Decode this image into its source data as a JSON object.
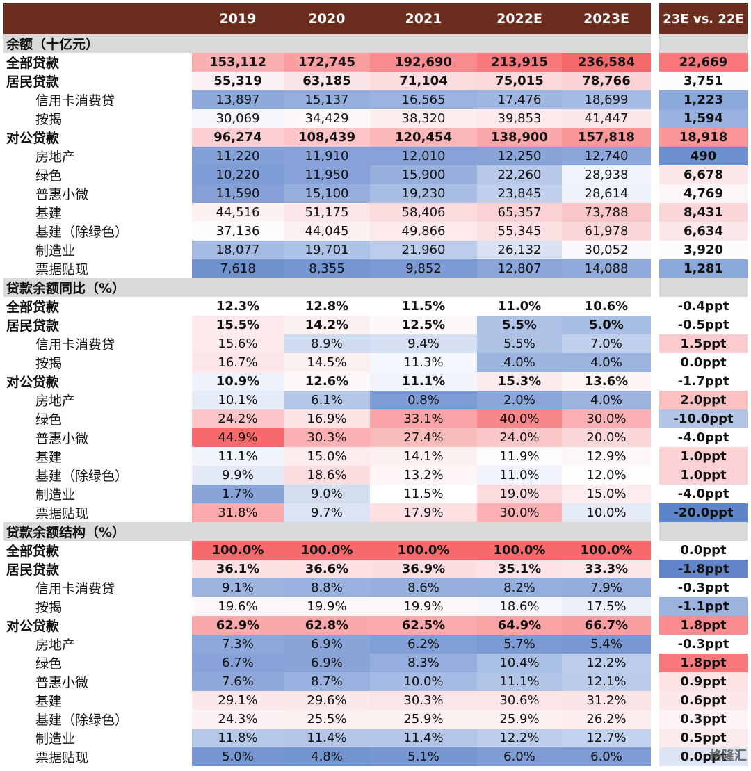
{
  "header": {
    "blank": "",
    "years": [
      "2019",
      "2020",
      "2021",
      "2022E",
      "2023E"
    ],
    "delta": "23E vs. 22E"
  },
  "sections": [
    {
      "title": "余额（十亿元）",
      "rows": [
        {
          "label": "全部贷款",
          "sub": false,
          "bold": true,
          "vals": [
            "153,112",
            "172,745",
            "192,690",
            "213,915",
            "236,584"
          ],
          "colors": [
            "#f9aeb0",
            "#f99da0",
            "#f98b8e",
            "#f8787b",
            "#f8696b"
          ],
          "delta": "22,669",
          "dcolor": "#f8787b"
        },
        {
          "label": "居民贷款",
          "sub": false,
          "bold": true,
          "vals": [
            "55,319",
            "63,185",
            "71,104",
            "75,015",
            "78,766"
          ],
          "colors": [
            "#fdf2f3",
            "#fbe4e5",
            "#fbdcde",
            "#fbd8d9",
            "#fbd2d4"
          ],
          "delta": "3,751",
          "dcolor": "#fbfbfe"
        },
        {
          "label": "信用卡消费贷",
          "sub": true,
          "bold": false,
          "vals": [
            "13,897",
            "15,137",
            "16,565",
            "17,476",
            "18,699"
          ],
          "colors": [
            "#8eaadb",
            "#94aedd",
            "#9ab3e0",
            "#9fb7e1",
            "#a6bce4"
          ],
          "delta": "1,223",
          "dcolor": "#8ba8da"
        },
        {
          "label": "按揭",
          "sub": true,
          "bold": false,
          "vals": [
            "30,069",
            "34,429",
            "38,320",
            "39,853",
            "41,447"
          ],
          "colors": [
            "#f4f6fc",
            "#fdf9fa",
            "#fcedee",
            "#fceaeb",
            "#fbe7e8"
          ],
          "delta": "1,594",
          "dcolor": "#98b1df"
        },
        {
          "label": "对公贷款",
          "sub": false,
          "bold": true,
          "vals": [
            "96,274",
            "108,439",
            "120,454",
            "138,900",
            "157,818"
          ],
          "colors": [
            "#fbcfd1",
            "#fbc4c6",
            "#fab8ba",
            "#faa8aa",
            "#f99799"
          ],
          "delta": "18,918",
          "dcolor": "#f99497"
        },
        {
          "label": "房地产",
          "sub": true,
          "bold": false,
          "vals": [
            "11,220",
            "11,910",
            "12,010",
            "12,250",
            "12,740"
          ],
          "colors": [
            "#829fd6",
            "#86a2d8",
            "#86a2d8",
            "#88a4d9",
            "#8ba6da"
          ],
          "delta": "490",
          "dcolor": "#6d90ce"
        },
        {
          "label": "绿色",
          "sub": true,
          "bold": false,
          "vals": [
            "10,220",
            "11,950",
            "15,900",
            "22,260",
            "28,938"
          ],
          "colors": [
            "#7d9bd4",
            "#86a2d8",
            "#98b0de",
            "#b7c8e9",
            "#f0f3fb"
          ],
          "delta": "6,678",
          "dcolor": "#fce8e9"
        },
        {
          "label": "普惠小微",
          "sub": true,
          "bold": false,
          "vals": [
            "11,590",
            "15,100",
            "19,230",
            "23,845",
            "28,614"
          ],
          "colors": [
            "#85a1d7",
            "#95aede",
            "#a8bee5",
            "#bfcfec",
            "#eef2fa"
          ],
          "delta": "4,769",
          "dcolor": "#fdf6f7"
        },
        {
          "label": "基建",
          "sub": true,
          "bold": false,
          "vals": [
            "44,516",
            "51,175",
            "58,406",
            "65,357",
            "73,788"
          ],
          "colors": [
            "#fdf1f2",
            "#fce6e7",
            "#fbdbdd",
            "#fbd1d3",
            "#fac5c7"
          ],
          "delta": "8,431",
          "dcolor": "#fbd6d8"
        },
        {
          "label": "基建（除绿色）",
          "sub": true,
          "bold": false,
          "vals": [
            "37,136",
            "44,045",
            "49,866",
            "55,345",
            "61,978"
          ],
          "colors": [
            "#fdfbfc",
            "#fdf1f2",
            "#fce9ea",
            "#fbe0e2",
            "#fbd6d8"
          ],
          "delta": "6,634",
          "dcolor": "#fce8e9"
        },
        {
          "label": "制造业",
          "sub": true,
          "bold": false,
          "vals": [
            "18,077",
            "19,701",
            "21,960",
            "26,132",
            "30,052"
          ],
          "colors": [
            "#a4bae3",
            "#acc1e6",
            "#bccdeb",
            "#d9e2f3",
            "#f7f9fd"
          ],
          "delta": "3,920",
          "dcolor": "#fdfbfc"
        },
        {
          "label": "票据贴现",
          "sub": true,
          "bold": false,
          "vals": [
            "7,618",
            "8,355",
            "9,852",
            "12,807",
            "14,088"
          ],
          "colors": [
            "#6f91ce",
            "#7596d1",
            "#7c9ad4",
            "#8aa5d9",
            "#90aadc"
          ],
          "delta": "1,281",
          "dcolor": "#8ba8da"
        }
      ]
    },
    {
      "title": "贷款余额同比（%）",
      "rows": [
        {
          "label": "全部贷款",
          "sub": false,
          "bold": true,
          "vals": [
            "12.3%",
            "12.8%",
            "11.5%",
            "11.0%",
            "10.6%"
          ],
          "colors": [
            "#ffffff",
            "#ffffff",
            "#ffffff",
            "#ffffff",
            "#ffffff"
          ],
          "delta": "-0.4ppt",
          "dcolor": "#ffffff"
        },
        {
          "label": "居民贷款",
          "sub": false,
          "bold": true,
          "vals": [
            "15.5%",
            "14.2%",
            "12.5%",
            "5.5%",
            "5.0%"
          ],
          "colors": [
            "#fceaeb",
            "#fcf0f1",
            "#fdf8f9",
            "#aec2e6",
            "#a9bee5"
          ],
          "delta": "-0.5ppt",
          "dcolor": "#ffffff"
        },
        {
          "label": "信用卡消费贷",
          "sub": true,
          "bold": false,
          "vals": [
            "15.6%",
            "8.9%",
            "9.4%",
            "5.5%",
            "7.0%"
          ],
          "colors": [
            "#fceaeb",
            "#d0dcf0",
            "#d6e0f2",
            "#aec2e6",
            "#bfcfec"
          ],
          "delta": "1.5ppt",
          "dcolor": "#fbcbcd"
        },
        {
          "label": "按揭",
          "sub": true,
          "bold": false,
          "vals": [
            "16.7%",
            "14.5%",
            "11.3%",
            "4.0%",
            "4.0%"
          ],
          "colors": [
            "#fce5e6",
            "#fcefef",
            "#f3f6fc",
            "#9cb3e0",
            "#9cb3e0"
          ],
          "delta": "0.0ppt",
          "dcolor": "#ffffff"
        },
        {
          "label": "对公贷款",
          "sub": false,
          "bold": true,
          "vals": [
            "10.9%",
            "12.6%",
            "11.1%",
            "15.3%",
            "13.6%"
          ],
          "colors": [
            "#eef2fa",
            "#fdf8f9",
            "#f1f4fb",
            "#fcebec",
            "#fcf3f3"
          ],
          "delta": "-1.7ppt",
          "dcolor": "#ffffff"
        },
        {
          "label": "房地产",
          "sub": true,
          "bold": false,
          "vals": [
            "10.1%",
            "6.1%",
            "0.8%",
            "2.0%",
            "4.0%"
          ],
          "colors": [
            "#e6ecf7",
            "#b5c7e8",
            "#7d9bd4",
            "#8aa5d9",
            "#9cb3e0"
          ],
          "delta": "2.0ppt",
          "dcolor": "#fac0c2"
        },
        {
          "label": "绿色",
          "sub": true,
          "bold": false,
          "vals": [
            "24.2%",
            "16.9%",
            "33.1%",
            "40.0%",
            "30.0%"
          ],
          "colors": [
            "#fbc5c7",
            "#fce4e5",
            "#f9a3a6",
            "#f8878a",
            "#fab0b2"
          ],
          "delta": "-10.0ppt",
          "dcolor": "#b1c4e7"
        },
        {
          "label": "普惠小微",
          "sub": true,
          "bold": false,
          "vals": [
            "44.9%",
            "30.3%",
            "27.4%",
            "24.0%",
            "20.0%"
          ],
          "colors": [
            "#f8696b",
            "#fab0b2",
            "#fabbbd",
            "#fbc6c8",
            "#fbd7d9"
          ],
          "delta": "-4.0ppt",
          "dcolor": "#ffffff"
        },
        {
          "label": "基建",
          "sub": true,
          "bold": false,
          "vals": [
            "11.1%",
            "15.0%",
            "14.1%",
            "11.9%",
            "12.9%"
          ],
          "colors": [
            "#f1f4fb",
            "#fcecee",
            "#fcf0f1",
            "#fdfcfd",
            "#fdf7f7"
          ],
          "delta": "1.0ppt",
          "dcolor": "#fbd1d3"
        },
        {
          "label": "基建（除绿色）",
          "sub": true,
          "bold": false,
          "vals": [
            "9.9%",
            "18.6%",
            "13.2%",
            "11.0%",
            "12.0%"
          ],
          "colors": [
            "#e3e9f6",
            "#fcdddf",
            "#fdf5f6",
            "#f0f3fb",
            "#fdfdfe"
          ],
          "delta": "1.0ppt",
          "dcolor": "#fbd1d3"
        },
        {
          "label": "制造业",
          "sub": true,
          "bold": false,
          "vals": [
            "1.7%",
            "9.0%",
            "11.5%",
            "19.0%",
            "15.0%"
          ],
          "colors": [
            "#87a3d8",
            "#d2ddf0",
            "#ffffff",
            "#fbdbdd",
            "#fcecee"
          ],
          "delta": "-4.0ppt",
          "dcolor": "#ffffff"
        },
        {
          "label": "票据贴现",
          "sub": true,
          "bold": false,
          "vals": [
            "31.8%",
            "9.7%",
            "17.9%",
            "30.0%",
            "10.0%"
          ],
          "colors": [
            "#faaaac",
            "#dbe3f4",
            "#fce0e2",
            "#fab0b2",
            "#e4eaf6"
          ],
          "delta": "-20.0ppt",
          "dcolor": "#5e84c9"
        }
      ]
    },
    {
      "title": "贷款余额结构（%）",
      "rows": [
        {
          "label": "全部贷款",
          "sub": false,
          "bold": true,
          "vals": [
            "100.0%",
            "100.0%",
            "100.0%",
            "100.0%",
            "100.0%"
          ],
          "colors": [
            "#f8696b",
            "#f8696b",
            "#f8696b",
            "#f8696b",
            "#f8696b"
          ],
          "delta": "0.0ppt",
          "dcolor": "#ffffff"
        },
        {
          "label": "居民贷款",
          "sub": false,
          "bold": true,
          "vals": [
            "36.1%",
            "36.6%",
            "36.9%",
            "35.1%",
            "33.3%"
          ],
          "colors": [
            "#fbe0e2",
            "#fbdfe1",
            "#fbdedf",
            "#fbe2e4",
            "#fce7e8"
          ],
          "delta": "-1.8ppt",
          "dcolor": "#6184ca"
        },
        {
          "label": "信用卡消费贷",
          "sub": true,
          "bold": false,
          "vals": [
            "9.1%",
            "8.8%",
            "8.6%",
            "8.2%",
            "7.9%"
          ],
          "colors": [
            "#9db4e0",
            "#9ab2df",
            "#98b0de",
            "#94aedd",
            "#92acdc"
          ],
          "delta": "-0.3ppt",
          "dcolor": "#ffffff"
        },
        {
          "label": "按揭",
          "sub": true,
          "bold": false,
          "vals": [
            "19.6%",
            "19.9%",
            "19.9%",
            "18.6%",
            "17.5%"
          ],
          "colors": [
            "#fdf8f9",
            "#fdf7f8",
            "#fdf7f8",
            "#f5f7fc",
            "#eaeff9"
          ],
          "delta": "-1.1ppt",
          "dcolor": "#9cb3e0"
        },
        {
          "label": "对公贷款",
          "sub": false,
          "bold": true,
          "vals": [
            "62.9%",
            "62.8%",
            "62.5%",
            "64.9%",
            "66.7%"
          ],
          "colors": [
            "#faa9ab",
            "#faa9ab",
            "#faaaac",
            "#faa3a5",
            "#f99ea1"
          ],
          "delta": "1.8ppt",
          "dcolor": "#f98b8e"
        },
        {
          "label": "房地产",
          "sub": true,
          "bold": false,
          "vals": [
            "7.3%",
            "6.9%",
            "6.2%",
            "5.7%",
            "5.4%"
          ],
          "colors": [
            "#8ca7da",
            "#88a4d9",
            "#819fd6",
            "#7c9ad4",
            "#7998d3"
          ],
          "delta": "-0.3ppt",
          "dcolor": "#ffffff"
        },
        {
          "label": "绿色",
          "sub": true,
          "bold": false,
          "vals": [
            "6.7%",
            "6.9%",
            "8.3%",
            "10.4%",
            "12.2%"
          ],
          "colors": [
            "#86a2d8",
            "#88a4d9",
            "#95aede",
            "#aac0e5",
            "#bccdeb"
          ],
          "delta": "1.8ppt",
          "dcolor": "#f8787b"
        },
        {
          "label": "普惠小微",
          "sub": true,
          "bold": false,
          "vals": [
            "7.6%",
            "8.7%",
            "10.0%",
            "11.1%",
            "12.1%"
          ],
          "colors": [
            "#8fa9db",
            "#99b1df",
            "#a6bce4",
            "#b0c4e7",
            "#bbcceb"
          ],
          "delta": "0.9ppt",
          "dcolor": "#fce4e5"
        },
        {
          "label": "基建",
          "sub": true,
          "bold": false,
          "vals": [
            "29.1%",
            "29.6%",
            "30.3%",
            "30.6%",
            "31.2%"
          ],
          "colors": [
            "#fbe9ea",
            "#fbe8e9",
            "#fbe6e7",
            "#fbe5e6",
            "#fbe4e5"
          ],
          "delta": "0.6ppt",
          "dcolor": "#fce8e9"
        },
        {
          "label": "基建（除绿色）",
          "sub": true,
          "bold": false,
          "vals": [
            "24.3%",
            "25.5%",
            "25.9%",
            "25.9%",
            "26.2%"
          ],
          "colors": [
            "#fdf2f3",
            "#fcf0f0",
            "#fcefef",
            "#fcefef",
            "#fceeef"
          ],
          "delta": "0.3ppt",
          "dcolor": "#fdf3f4"
        },
        {
          "label": "制造业",
          "sub": true,
          "bold": false,
          "vals": [
            "11.8%",
            "11.4%",
            "11.4%",
            "12.2%",
            "12.7%"
          ],
          "colors": [
            "#b7c9e9",
            "#b3c6e8",
            "#b3c6e8",
            "#bccdeb",
            "#c2d1ed"
          ],
          "delta": "0.5ppt",
          "dcolor": "#fbecec"
        },
        {
          "label": "票据贴现",
          "sub": true,
          "bold": false,
          "vals": [
            "5.0%",
            "4.8%",
            "5.1%",
            "6.0%",
            "6.0%"
          ],
          "colors": [
            "#7596d1",
            "#7294d0",
            "#7697d1",
            "#7f9cd5",
            "#7f9cd5"
          ],
          "delta": "0.0ppt",
          "dcolor": "#dde5f4"
        }
      ]
    }
  ],
  "watermark": "格隆汇",
  "colors": {
    "header_bg": "#6b2d1e",
    "section_bg": "#d9d9d9"
  }
}
